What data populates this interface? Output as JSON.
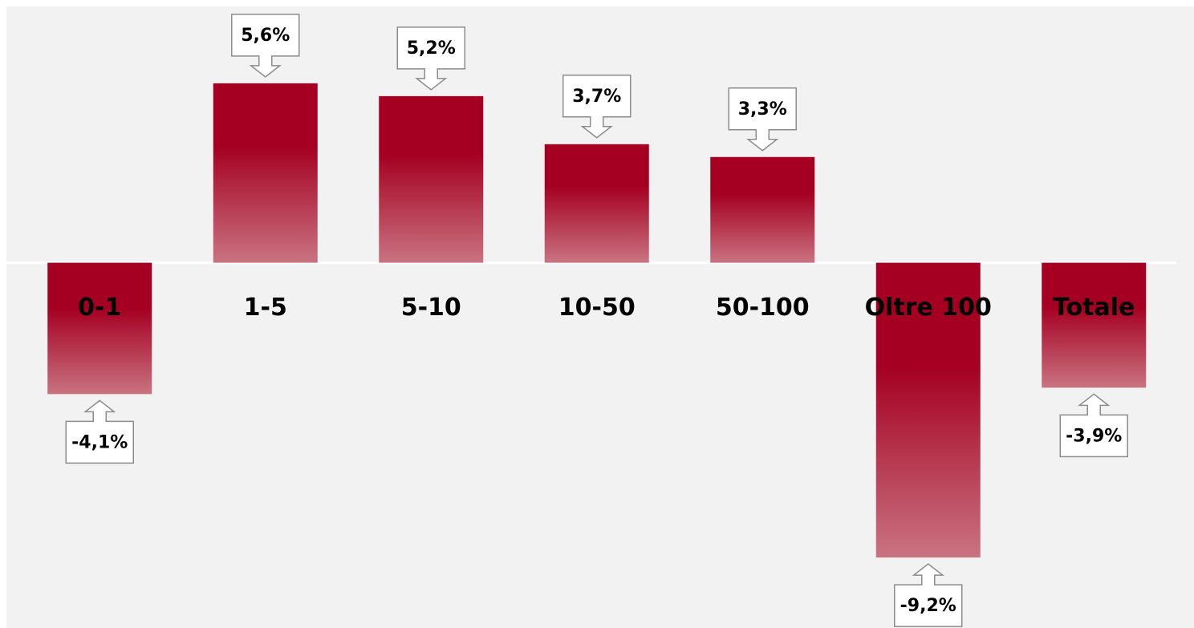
{
  "chart_data": {
    "type": "bar",
    "categories": [
      "0-1",
      "1-5",
      "5-10",
      "10-50",
      "50-100",
      "Oltre 100",
      "Totale"
    ],
    "values": [
      -4.1,
      5.6,
      5.2,
      3.7,
      3.3,
      -9.2,
      -3.9
    ],
    "value_labels": [
      "-4,1%",
      "5,6%",
      "5,2%",
      "3,7%",
      "3,3%",
      "-9,2%",
      "-3,9%"
    ],
    "color": "#a50021",
    "ylim": [
      -11.4,
      8
    ]
  }
}
